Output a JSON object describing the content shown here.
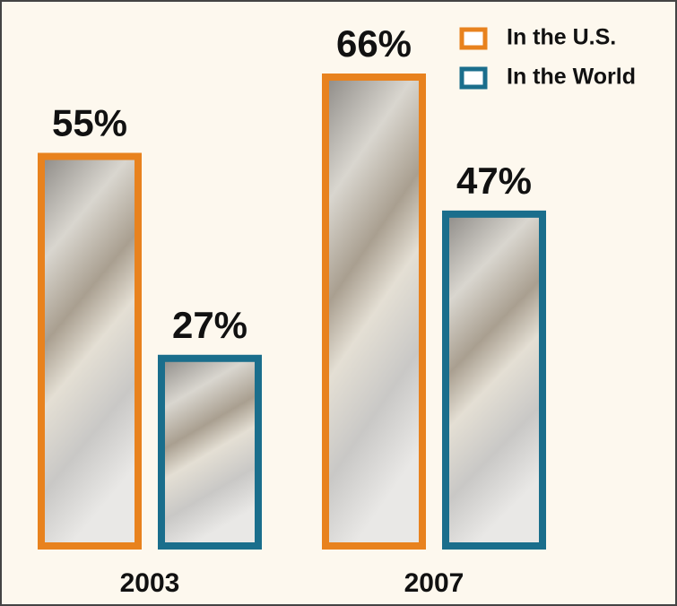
{
  "chart_data": {
    "type": "bar",
    "categories": [
      "2003",
      "2007"
    ],
    "series": [
      {
        "name": "In the U.S.",
        "color": "#e8821e",
        "values": [
          55,
          66
        ],
        "value_labels": [
          "55%",
          "66%"
        ]
      },
      {
        "name": "In the World",
        "color": "#1a6e8c",
        "values": [
          27,
          47
        ],
        "value_labels": [
          "27%",
          "47%"
        ]
      }
    ],
    "legend": "top-right"
  }
}
